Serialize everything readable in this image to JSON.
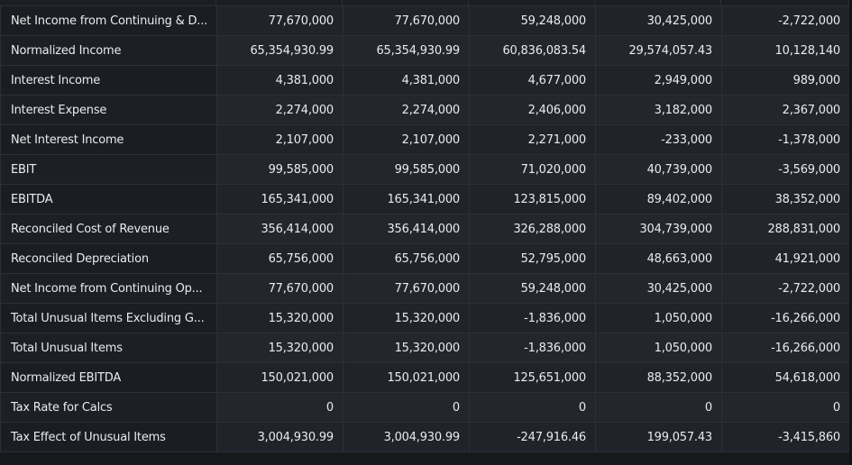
{
  "table": {
    "rows": [
      {
        "label": "Net Income from Continuing & D...",
        "values": [
          "77,670,000",
          "77,670,000",
          "59,248,000",
          "30,425,000",
          "-2,722,000"
        ]
      },
      {
        "label": "Normalized Income",
        "values": [
          "65,354,930.99",
          "65,354,930.99",
          "60,836,083.54",
          "29,574,057.43",
          "10,128,140"
        ]
      },
      {
        "label": "Interest Income",
        "values": [
          "4,381,000",
          "4,381,000",
          "4,677,000",
          "2,949,000",
          "989,000"
        ]
      },
      {
        "label": "Interest Expense",
        "values": [
          "2,274,000",
          "2,274,000",
          "2,406,000",
          "3,182,000",
          "2,367,000"
        ]
      },
      {
        "label": "Net Interest Income",
        "values": [
          "2,107,000",
          "2,107,000",
          "2,271,000",
          "-233,000",
          "-1,378,000"
        ]
      },
      {
        "label": "EBIT",
        "values": [
          "99,585,000",
          "99,585,000",
          "71,020,000",
          "40,739,000",
          "-3,569,000"
        ]
      },
      {
        "label": "EBITDA",
        "values": [
          "165,341,000",
          "165,341,000",
          "123,815,000",
          "89,402,000",
          "38,352,000"
        ]
      },
      {
        "label": "Reconciled Cost of Revenue",
        "values": [
          "356,414,000",
          "356,414,000",
          "326,288,000",
          "304,739,000",
          "288,831,000"
        ]
      },
      {
        "label": "Reconciled Depreciation",
        "values": [
          "65,756,000",
          "65,756,000",
          "52,795,000",
          "48,663,000",
          "41,921,000"
        ]
      },
      {
        "label": "Net Income from Continuing Op...",
        "values": [
          "77,670,000",
          "77,670,000",
          "59,248,000",
          "30,425,000",
          "-2,722,000"
        ]
      },
      {
        "label": "Total Unusual Items Excluding G...",
        "values": [
          "15,320,000",
          "15,320,000",
          "-1,836,000",
          "1,050,000",
          "-16,266,000"
        ]
      },
      {
        "label": "Total Unusual Items",
        "values": [
          "15,320,000",
          "15,320,000",
          "-1,836,000",
          "1,050,000",
          "-16,266,000"
        ]
      },
      {
        "label": "Normalized EBITDA",
        "values": [
          "150,021,000",
          "150,021,000",
          "125,651,000",
          "88,352,000",
          "54,618,000"
        ]
      },
      {
        "label": "Tax Rate for Calcs",
        "values": [
          "0",
          "0",
          "0",
          "0",
          "0"
        ]
      },
      {
        "label": "Tax Effect of Unusual Items",
        "values": [
          "3,004,930.99",
          "3,004,930.99",
          "-247,916.46",
          "199,057.43",
          "-3,415,860"
        ]
      }
    ]
  },
  "colors": {
    "background": "#17191d",
    "cell_label_bg": "#1b1d22",
    "cell_value_bg": "#202329",
    "border": "#2c3037",
    "text": "#e9ebee"
  }
}
